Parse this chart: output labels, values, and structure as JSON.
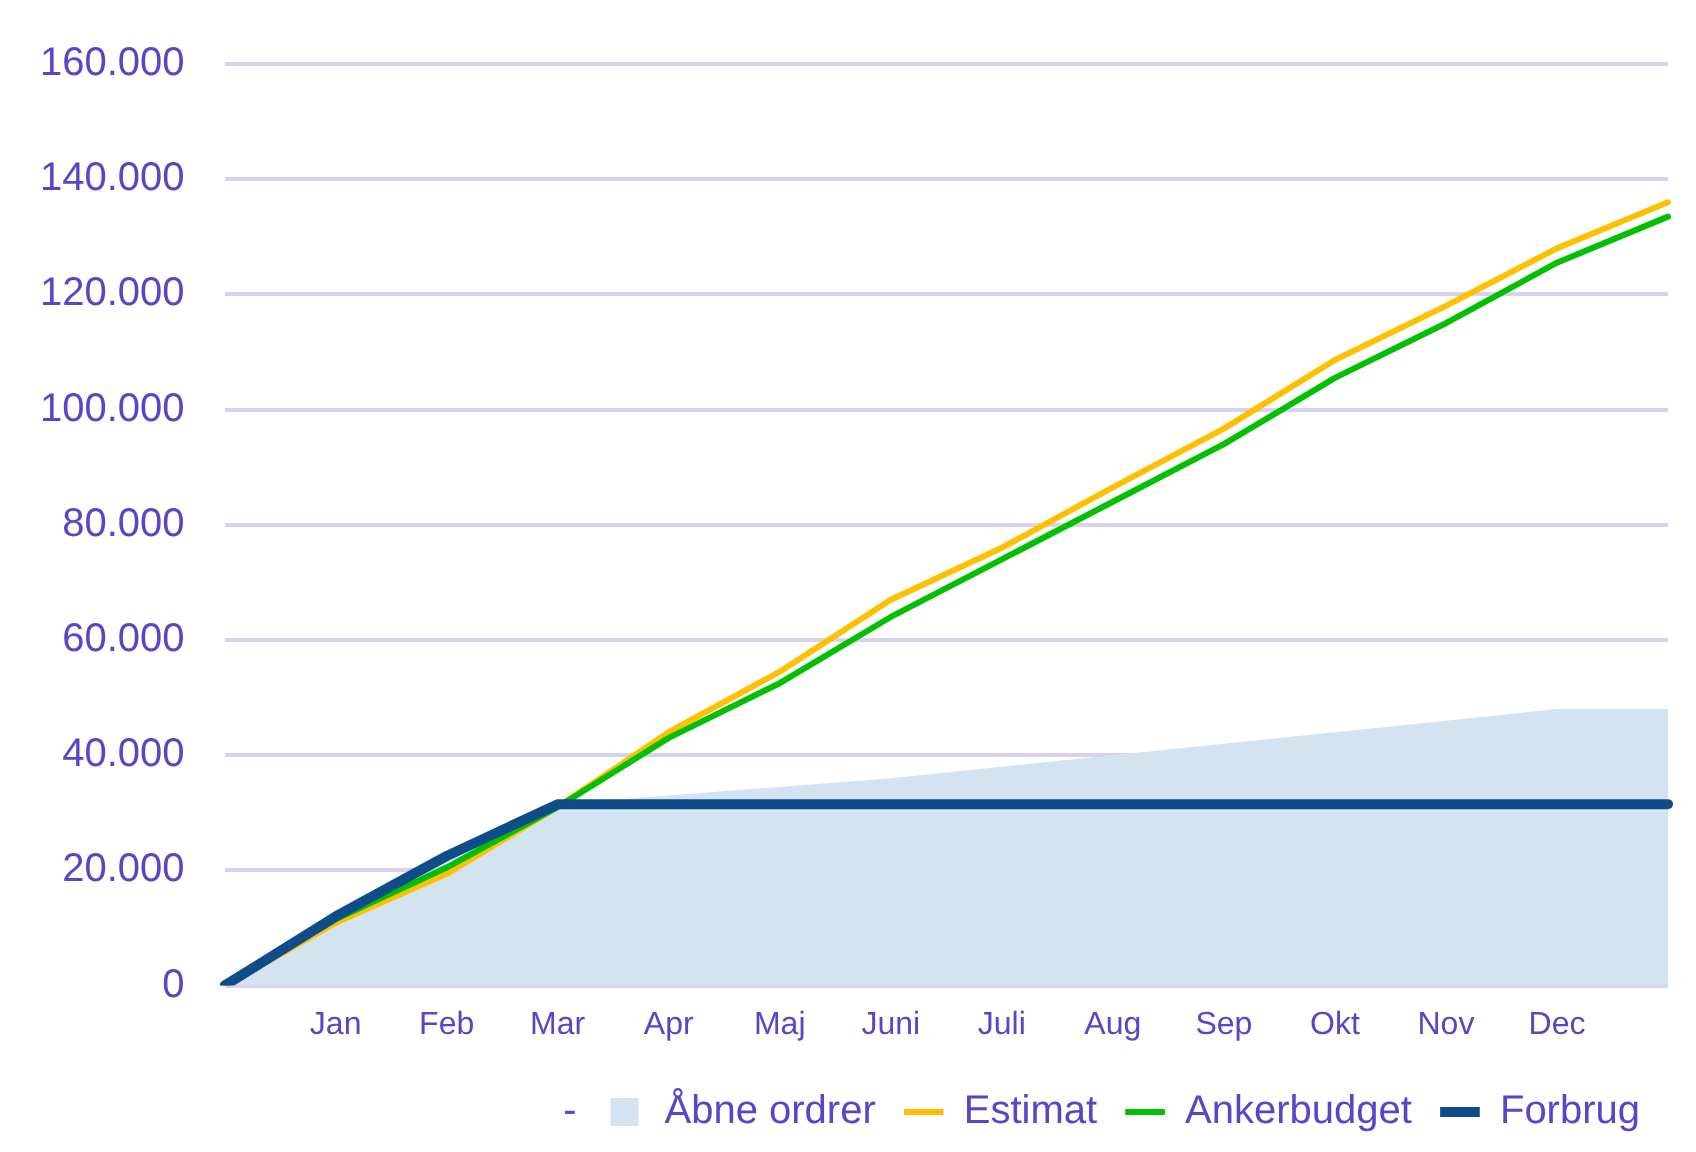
{
  "chart_data": {
    "type": "line",
    "categories": [
      null,
      "Jan",
      "Feb",
      "Mar",
      "Apr",
      "Maj",
      "Juni",
      "Juli",
      "Aug",
      "Sep",
      "Okt",
      "Nov",
      "Dec",
      null
    ],
    "series": [
      {
        "name": "-",
        "values": [
          null,
          null,
          null,
          null,
          null,
          null,
          null,
          null,
          null,
          null,
          null,
          null,
          null,
          null
        ]
      },
      {
        "name": "Åbne ordrer",
        "type": "area",
        "color": "#d4e3f0",
        "values": [
          0,
          12000,
          22500,
          31500,
          33000,
          34500,
          36000,
          38000,
          40000,
          42000,
          44000,
          46000,
          48000,
          48000
        ]
      },
      {
        "name": "Estimat",
        "color": "#ffc000",
        "values": [
          0,
          10900,
          19400,
          31000,
          44000,
          54500,
          67000,
          76000,
          86500,
          96700,
          108600,
          118000,
          128000,
          136000
        ]
      },
      {
        "name": "Ankerbudget",
        "color": "#00c000",
        "values": [
          0,
          11500,
          20500,
          31000,
          43000,
          52500,
          64000,
          74000,
          84000,
          94000,
          105500,
          115000,
          125500,
          133500
        ]
      },
      {
        "name": "Forbrug",
        "color": "#0e4c8a",
        "values": [
          0,
          12000,
          22500,
          31500,
          31500,
          31500,
          31500,
          31500,
          31500,
          31500,
          31500,
          31500,
          31500,
          31500
        ]
      }
    ],
    "ylim": [
      0,
      160000
    ],
    "yticks": [
      {
        "value": 0,
        "label": "0"
      },
      {
        "value": 20000,
        "label": "20.000"
      },
      {
        "value": 40000,
        "label": "40.000"
      },
      {
        "value": 60000,
        "label": "60.000"
      },
      {
        "value": 80000,
        "label": "80.000"
      },
      {
        "value": 100000,
        "label": "100.000"
      },
      {
        "value": 120000,
        "label": "120.000"
      },
      {
        "value": 140000,
        "label": "140.000"
      },
      {
        "value": 160000,
        "label": "160.000"
      }
    ],
    "grid": "y",
    "legend": "bottom",
    "marker": "none",
    "line_style": "solid"
  }
}
